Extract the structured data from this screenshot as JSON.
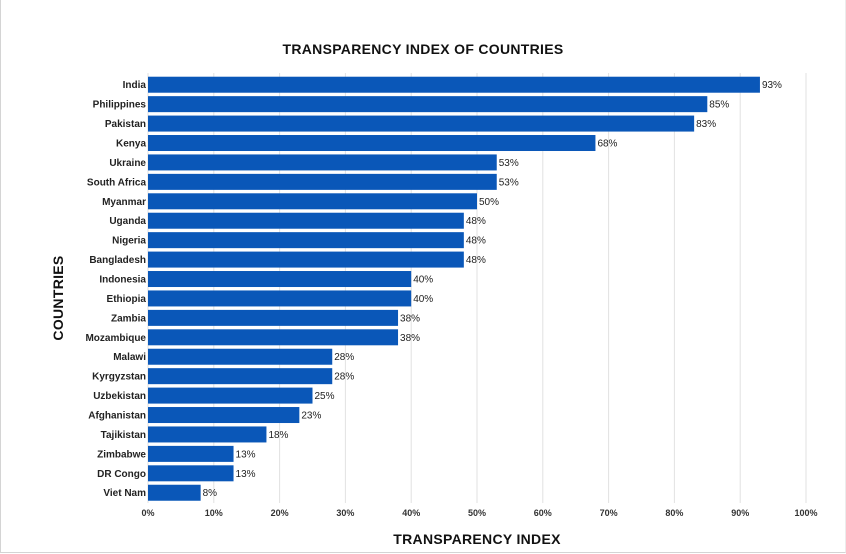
{
  "chart_data": {
    "type": "bar",
    "orientation": "horizontal",
    "title": "TRANSPARENCY INDEX OF COUNTRIES",
    "xlabel": "TRANSPARENCY INDEX",
    "ylabel": "COUNTRIES",
    "categories": [
      "India",
      "Philippines",
      "Pakistan",
      "Kenya",
      "Ukraine",
      "South Africa",
      "Myanmar",
      "Uganda",
      "Nigeria",
      "Bangladesh",
      "Indonesia",
      "Ethiopia",
      "Zambia",
      "Mozambique",
      "Malawi",
      "Kyrgyzstan",
      "Uzbekistan",
      "Afghanistan",
      "Tajikistan",
      "Zimbabwe",
      "DR Congo",
      "Viet Nam"
    ],
    "values": [
      93,
      85,
      83,
      68,
      53,
      53,
      50,
      48,
      48,
      48,
      40,
      40,
      38,
      38,
      28,
      28,
      25,
      23,
      18,
      13,
      13,
      8
    ],
    "value_labels": [
      "93%",
      "85%",
      "83%",
      "68%",
      "53%",
      "53%",
      "50%",
      "48%",
      "48%",
      "48%",
      "40%",
      "40%",
      "38%",
      "38%",
      "28%",
      "28%",
      "25%",
      "23%",
      "18%",
      "13%",
      "13%",
      "8%"
    ],
    "xlim": [
      0,
      100
    ],
    "x_ticks": [
      0,
      10,
      20,
      30,
      40,
      50,
      60,
      70,
      80,
      90,
      100
    ],
    "x_tick_labels": [
      "0%",
      "10%",
      "20%",
      "30%",
      "40%",
      "50%",
      "60%",
      "70%",
      "80%",
      "90%",
      "100%"
    ],
    "grid": true,
    "legend": "none",
    "colors": {
      "bar": "#0a57b8",
      "grid": "#e2e2e2"
    }
  }
}
